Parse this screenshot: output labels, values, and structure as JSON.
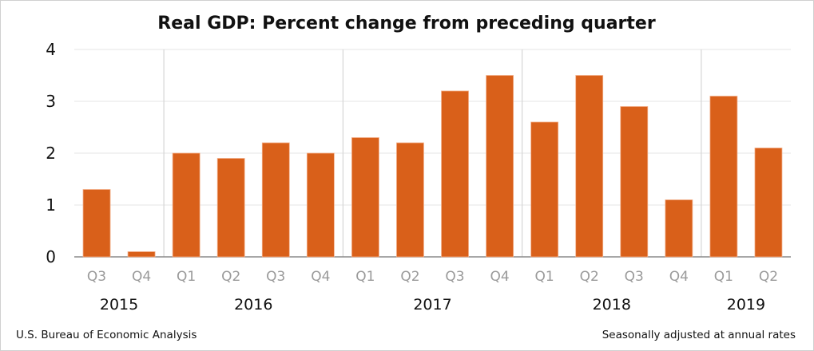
{
  "chart_data": {
    "type": "bar",
    "title": "Real GDP:  Percent change from preceding quarter",
    "categories": [
      "Q3",
      "Q4",
      "Q1",
      "Q2",
      "Q3",
      "Q4",
      "Q1",
      "Q2",
      "Q3",
      "Q4",
      "Q1",
      "Q2",
      "Q3",
      "Q4",
      "Q1",
      "Q2"
    ],
    "years": [
      {
        "label": "2015",
        "quarters": 2
      },
      {
        "label": "2016",
        "quarters": 4
      },
      {
        "label": "2017",
        "quarters": 4
      },
      {
        "label": "2018",
        "quarters": 4
      },
      {
        "label": "2019",
        "quarters": 2
      }
    ],
    "values": [
      1.3,
      0.1,
      2.0,
      1.9,
      2.2,
      2.0,
      2.3,
      2.2,
      3.2,
      3.5,
      2.6,
      3.5,
      2.9,
      1.1,
      3.1,
      2.1
    ],
    "ylim": [
      0,
      4
    ],
    "yticks": [
      0,
      1,
      2,
      3,
      4
    ],
    "grid": true,
    "xlabel": "",
    "ylabel": "",
    "bar_color": "#D9601A",
    "source": "U.S. Bureau of Economic Analysis",
    "note": "Seasonally adjusted at annual rates"
  }
}
